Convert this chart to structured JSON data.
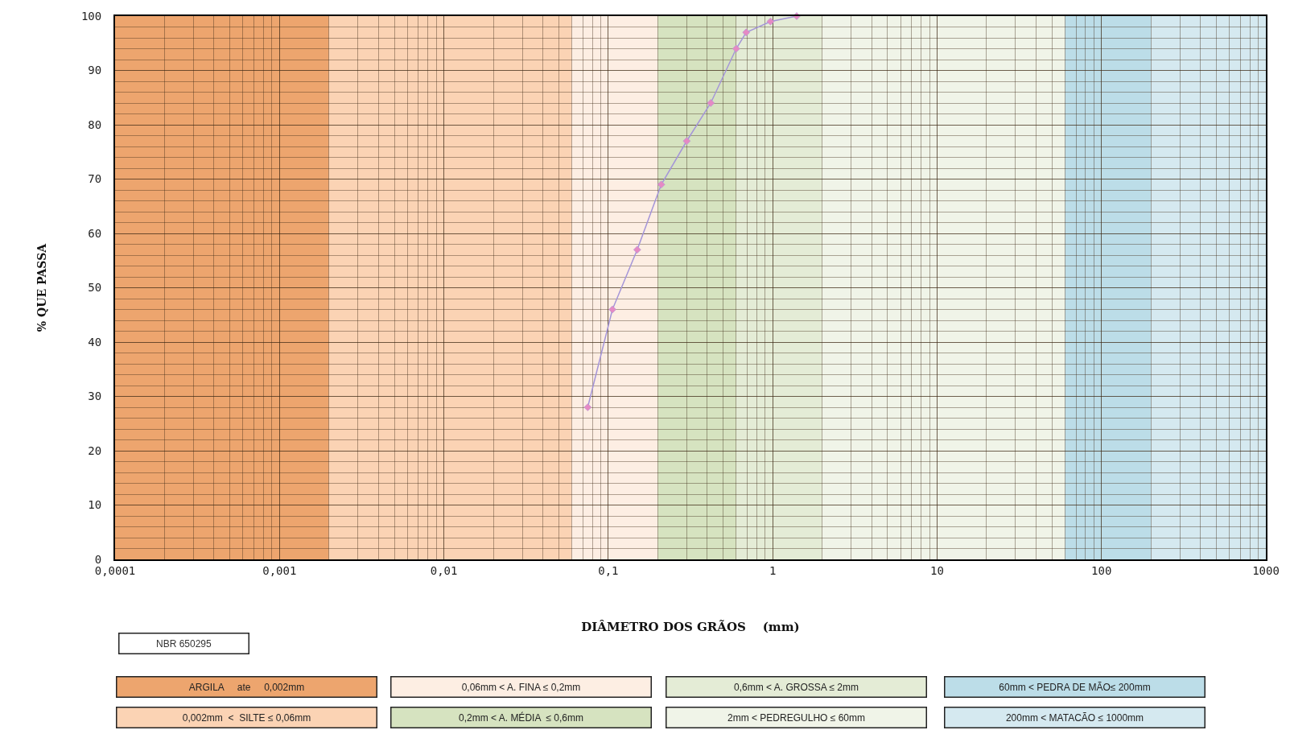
{
  "chart_data": {
    "type": "line",
    "xlabel": "DIÂMETRO DOS GRÃOS    (mm)",
    "ylabel": "% QUE PASSA",
    "log": "x",
    "x": [
      0.075,
      0.106,
      0.15,
      0.21,
      0.3,
      0.42,
      0.6,
      0.69,
      0.97,
      1.4
    ],
    "series": [
      {
        "color": "#a495d8",
        "values": [
          28,
          46,
          57,
          69,
          77,
          84,
          94,
          97,
          99,
          100
        ]
      }
    ],
    "marker": "diamond",
    "line_style": "solid",
    "grid": true,
    "xlim": [
      0.0001,
      1000
    ],
    "xticks": [
      {
        "value": 0.0001,
        "label": "0,0001"
      },
      {
        "value": 0.001,
        "label": "0,001"
      },
      {
        "value": 0.01,
        "label": "0,01"
      },
      {
        "value": 0.1,
        "label": "0,1"
      },
      1,
      10,
      100,
      1000
    ],
    "ylim": [
      0,
      100
    ],
    "yticks": [
      0,
      10,
      20,
      30,
      40,
      50,
      60,
      70,
      80,
      90,
      100
    ],
    "bands": [
      {
        "axis": "x",
        "from": 0.0001,
        "to": 0.002,
        "color": "#eda56e"
      },
      {
        "axis": "x",
        "from": 0.002,
        "to": 0.06,
        "color": "#fbd3b4"
      },
      {
        "axis": "x",
        "from": 0.06,
        "to": 0.2,
        "color": "#fdeee3"
      },
      {
        "axis": "x",
        "from": 0.2,
        "to": 0.6,
        "color": "#d6e3c0"
      },
      {
        "axis": "x",
        "from": 0.6,
        "to": 2,
        "color": "#e4ecd6"
      },
      {
        "axis": "x",
        "from": 2,
        "to": 60,
        "color": "#f0f4e8"
      },
      {
        "axis": "x",
        "from": 60,
        "to": 200,
        "color": "#bcdde8"
      },
      {
        "axis": "x",
        "from": 200,
        "to": 1000,
        "color": "#d5e9f0"
      }
    ],
    "annotations": [
      "NBR 650295",
      "ARGILA     ate     0,002mm",
      "0,002mm  <  SILTE ≤ 0,06mm",
      "0,06mm < A. FINA ≤ 0,2mm",
      "0,2mm < A. MÉDIA  ≤ 0,6mm",
      "0,6mm < A. GROSSA ≤ 2mm",
      "2mm < PEDREGULHO ≤ 60mm",
      "60mm < PEDRA DE MÃO≤ 200mm",
      "200mm < MATACÃO ≤ 1000mm"
    ]
  }
}
